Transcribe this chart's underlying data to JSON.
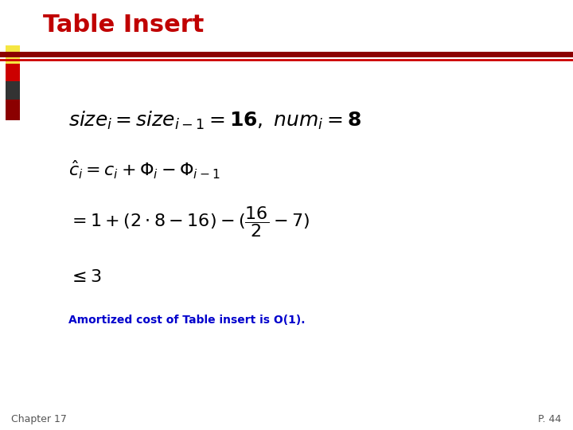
{
  "title": "Table Insert",
  "title_color": "#C00000",
  "title_fontsize": 22,
  "background_color": "#FFFFFF",
  "header_bar_color": "#8B0000",
  "header_bar_thin_color": "#CC0000",
  "decoration_colors": [
    "#F5E642",
    "#CC0000",
    "#333333",
    "#8B0000"
  ],
  "amortized_text": "Amortized cost of Table insert is O(1).",
  "amortized_color": "#0000CC",
  "amortized_fontsize": 10,
  "footer_left": "Chapter 17",
  "footer_right": "P. 44",
  "footer_color": "#555555",
  "footer_fontsize": 9,
  "math_color": "#000000",
  "math_fontsize": 16
}
